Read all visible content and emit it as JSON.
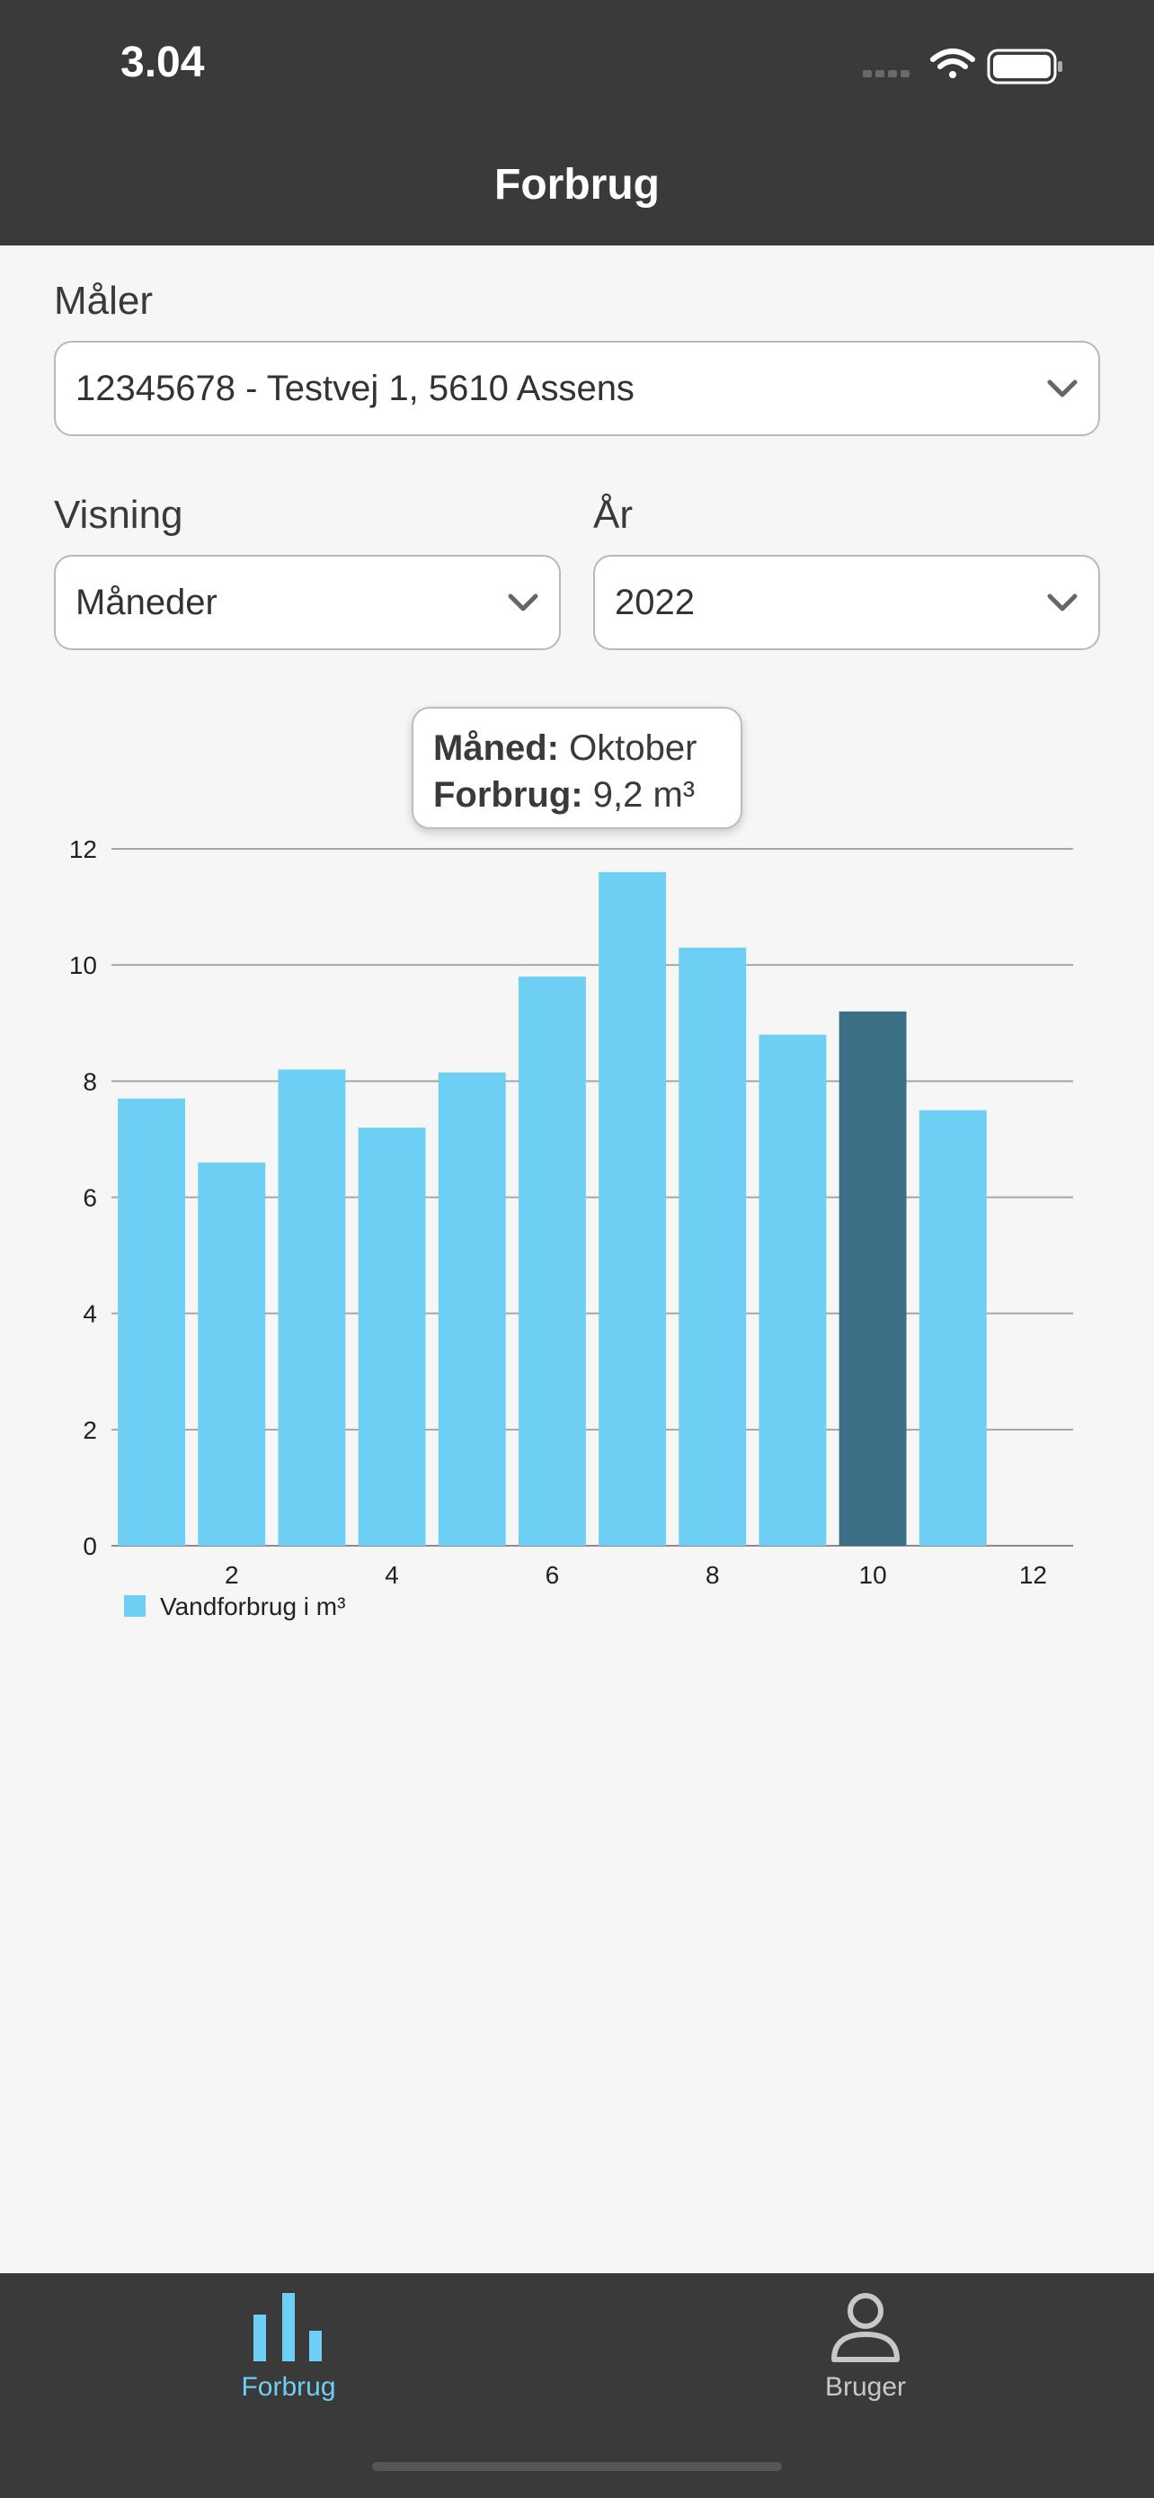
{
  "status_bar": {
    "time": "3.04"
  },
  "header": {
    "title": "Forbrug"
  },
  "meter": {
    "label": "Måler",
    "value": "12345678 - Testvej 1, 5610 Assens"
  },
  "view": {
    "label": "Visning",
    "value": "Måneder"
  },
  "year": {
    "label": "År",
    "value": "2022"
  },
  "tooltip": {
    "month_label": "Måned:",
    "month_value": "Oktober",
    "usage_label": "Forbrug:",
    "usage_value": "9,2 m³"
  },
  "colors": {
    "bar": "#6ecff5",
    "bar_selected": "#3b6f86",
    "header_bg": "#3a3a3a",
    "tab_active": "#6ecff5",
    "tab_inactive": "#c8c8c8"
  },
  "chart_data": {
    "type": "bar",
    "x": [
      1,
      2,
      3,
      4,
      5,
      6,
      7,
      8,
      9,
      10,
      11
    ],
    "values": [
      7.7,
      6.6,
      8.2,
      7.2,
      8.15,
      9.8,
      11.6,
      10.3,
      8.8,
      9.2,
      7.5
    ],
    "selected_index": 9,
    "ylim": [
      0,
      12
    ],
    "yticks": [
      0,
      2,
      4,
      6,
      8,
      10,
      12
    ],
    "xticks": [
      2,
      4,
      6,
      8,
      10,
      12
    ],
    "xlim": [
      0.5,
      12.5
    ],
    "grid": true,
    "legend": {
      "label": "Vandforbrug i m³",
      "position": "bottom-left"
    }
  },
  "tabs": [
    {
      "label": "Forbrug",
      "icon": "bar-chart-icon",
      "active": true
    },
    {
      "label": "Bruger",
      "icon": "user-icon",
      "active": false
    }
  ]
}
